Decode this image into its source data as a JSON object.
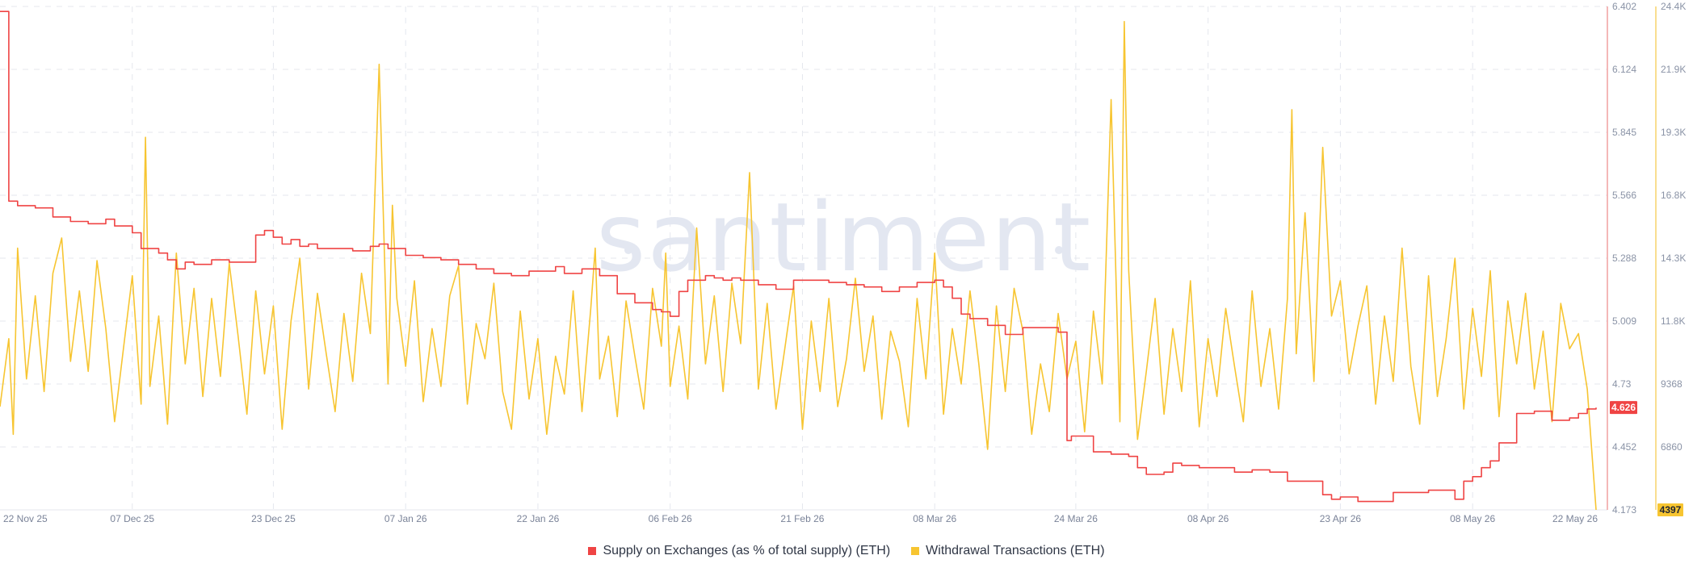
{
  "watermark": "santiment",
  "legend": [
    {
      "label": "Supply on Exchanges (as % of total supply) (ETH)",
      "color": "#ef4444"
    },
    {
      "label": "Withdrawal Transactions (ETH)",
      "color": "#f7c531"
    }
  ],
  "chart_data": {
    "type": "line",
    "x_range": [
      "2025-11-22",
      "2026-05-22"
    ],
    "x_tick_labels": [
      "22 Nov 25",
      "07 Dec 25",
      "23 Dec 25",
      "07 Jan 26",
      "22 Jan 26",
      "06 Feb 26",
      "21 Feb 26",
      "08 Mar 26",
      "24 Mar 26",
      "08 Apr 26",
      "23 Apr 26",
      "08 May 26",
      "22 May 26"
    ],
    "x_tick_positions": [
      0,
      15,
      31,
      46,
      61,
      76,
      91,
      106,
      122,
      137,
      152,
      167,
      181
    ],
    "grid": true,
    "legend_position": "bottom",
    "y_left": {
      "series": "Supply on Exchanges (as % of total supply) (ETH)",
      "range": [
        4.173,
        6.402
      ],
      "tick_labels": [
        "6.402",
        "6.124",
        "5.845",
        "5.566",
        "5.288",
        "5.009",
        "4.73",
        "4.452",
        "4.173"
      ],
      "last_value_badge": "4.626"
    },
    "y_right": {
      "series": "Withdrawal Transactions (ETH)",
      "range": [
        4397,
        24400
      ],
      "tick_labels": [
        "24.4K",
        "21.9K",
        "19.3K",
        "16.8K",
        "14.3K",
        "11.8K",
        "9368",
        "6860",
        "4397"
      ],
      "last_value_badge": "4397"
    },
    "series": [
      {
        "name": "Supply on Exchanges (as % of total supply) (ETH)",
        "axis": "left",
        "color": "#ef4444",
        "x": [
          0,
          1,
          2,
          4,
          6,
          8,
          10,
          12,
          13,
          15,
          16,
          18,
          19,
          20,
          21,
          22,
          24,
          26,
          28,
          29,
          30,
          31,
          32,
          33,
          34,
          35,
          36,
          38,
          40,
          42,
          43,
          44,
          46,
          48,
          50,
          52,
          54,
          56,
          58,
          60,
          62,
          63,
          64,
          66,
          68,
          70,
          72,
          74,
          75,
          76,
          77,
          78,
          80,
          81,
          82,
          83,
          84,
          86,
          88,
          90,
          92,
          94,
          96,
          98,
          100,
          102,
          104,
          106,
          107,
          108,
          109,
          110,
          111,
          112,
          114,
          116,
          118,
          119,
          120,
          121,
          121.5,
          122,
          124,
          126,
          128,
          129,
          130,
          132,
          133,
          134,
          136,
          138,
          140,
          142,
          144,
          146,
          148,
          150,
          151,
          152,
          154,
          156,
          158,
          160,
          162,
          164,
          165,
          166,
          167,
          168,
          169,
          170,
          172,
          174,
          176,
          178,
          179,
          180,
          181
        ],
        "values": [
          6.38,
          5.54,
          5.52,
          5.51,
          5.47,
          5.45,
          5.44,
          5.46,
          5.43,
          5.4,
          5.33,
          5.31,
          5.28,
          5.24,
          5.27,
          5.26,
          5.28,
          5.27,
          5.27,
          5.39,
          5.41,
          5.38,
          5.35,
          5.37,
          5.34,
          5.35,
          5.33,
          5.33,
          5.32,
          5.34,
          5.35,
          5.33,
          5.3,
          5.29,
          5.28,
          5.26,
          5.24,
          5.22,
          5.21,
          5.23,
          5.23,
          5.25,
          5.22,
          5.24,
          5.21,
          5.13,
          5.09,
          5.06,
          5.05,
          5.03,
          5.14,
          5.19,
          5.21,
          5.2,
          5.19,
          5.2,
          5.19,
          5.17,
          5.15,
          5.19,
          5.19,
          5.18,
          5.17,
          5.16,
          5.14,
          5.16,
          5.18,
          5.19,
          5.16,
          5.11,
          5.04,
          5.02,
          5.02,
          4.99,
          4.95,
          4.98,
          4.98,
          4.98,
          4.96,
          4.48,
          4.5,
          4.5,
          4.43,
          4.42,
          4.41,
          4.36,
          4.33,
          4.34,
          4.38,
          4.37,
          4.36,
          4.36,
          4.34,
          4.35,
          4.34,
          4.3,
          4.3,
          4.24,
          4.22,
          4.23,
          4.21,
          4.21,
          4.25,
          4.25,
          4.26,
          4.26,
          4.22,
          4.3,
          4.32,
          4.36,
          4.39,
          4.47,
          4.6,
          4.61,
          4.57,
          4.58,
          4.6,
          4.62,
          4.626
        ]
      },
      {
        "name": "Withdrawal Transactions (ETH)",
        "axis": "right",
        "color": "#f7c531",
        "x": [
          0,
          1,
          1.5,
          2,
          3,
          4,
          5,
          6,
          7,
          8,
          9,
          10,
          11,
          12,
          13,
          14,
          15,
          16,
          16.5,
          17,
          18,
          19,
          20,
          21,
          22,
          23,
          24,
          25,
          26,
          27,
          28,
          29,
          30,
          31,
          32,
          33,
          34,
          35,
          36,
          37,
          38,
          39,
          40,
          41,
          42,
          43,
          44,
          44.5,
          45,
          46,
          47,
          48,
          49,
          50,
          51,
          52,
          53,
          54,
          55,
          56,
          57,
          58,
          59,
          60,
          61,
          62,
          63,
          64,
          65,
          66,
          67,
          67.5,
          68,
          69,
          70,
          71,
          72,
          73,
          74,
          75,
          75.5,
          76,
          77,
          78,
          79,
          80,
          81,
          82,
          83,
          84,
          85,
          86,
          87,
          88,
          89,
          90,
          91,
          92,
          93,
          94,
          95,
          96,
          97,
          98,
          99,
          100,
          101,
          102,
          103,
          104,
          105,
          106,
          107,
          108,
          109,
          110,
          111,
          112,
          113,
          114,
          115,
          116,
          117,
          118,
          119,
          120,
          121,
          122,
          123,
          124,
          125,
          126,
          127,
          127.5,
          128,
          129,
          130,
          131,
          132,
          133,
          134,
          135,
          136,
          137,
          138,
          139,
          140,
          141,
          142,
          143,
          144,
          145,
          146,
          146.5,
          147,
          148,
          149,
          150,
          151,
          152,
          153,
          154,
          155,
          156,
          157,
          158,
          159,
          160,
          161,
          162,
          163,
          164,
          165,
          166,
          167,
          168,
          169,
          170,
          171,
          172,
          173,
          174,
          175,
          176,
          177,
          178,
          179,
          180,
          181
        ],
        "values": [
          8500,
          11200,
          7400,
          14800,
          9600,
          12900,
          9100,
          13800,
          15200,
          10300,
          13100,
          9900,
          14300,
          11600,
          7900,
          10800,
          13700,
          8600,
          19200,
          9300,
          12100,
          7800,
          14600,
          10200,
          13200,
          8900,
          12800,
          9700,
          14200,
          11300,
          8200,
          13100,
          9800,
          12500,
          7600,
          11900,
          14400,
          9200,
          13000,
          10600,
          8300,
          12200,
          9500,
          13800,
          11400,
          22100,
          9400,
          16500,
          12800,
          10100,
          13500,
          8700,
          11600,
          9300,
          12900,
          14100,
          8600,
          11800,
          10400,
          13400,
          9100,
          7600,
          12300,
          8800,
          11200,
          7400,
          10500,
          9000,
          13100,
          8300,
          12400,
          14800,
          9600,
          11300,
          8100,
          12700,
          10500,
          8400,
          13200,
          10900,
          14600,
          9300,
          11700,
          8800,
          15600,
          10200,
          12900,
          9100,
          13400,
          11000,
          17800,
          9200,
          12600,
          8400,
          10800,
          13300,
          7600,
          11900,
          9100,
          12800,
          8500,
          10400,
          13600,
          9900,
          12100,
          8000,
          11500,
          10300,
          7700,
          12800,
          9600,
          14600,
          8200,
          11600,
          9400,
          13100,
          10200,
          6800,
          12500,
          9100,
          13200,
          11500,
          7400,
          10200,
          8300,
          12200,
          9600,
          11100,
          7500,
          12300,
          9400,
          20700,
          7900,
          23800,
          13900,
          7200,
          9900,
          12800,
          8200,
          11600,
          9100,
          13500,
          7700,
          11200,
          8900,
          12400,
          10100,
          7900,
          13100,
          9300,
          11600,
          8400,
          12800,
          20300,
          10600,
          16200,
          9500,
          18800,
          12100,
          13500,
          9800,
          11700,
          13300,
          8600,
          12100,
          9500,
          14800,
          10100,
          7800,
          13700,
          8900,
          11200,
          14400,
          8400,
          12400,
          9700,
          13900,
          8100,
          12700,
          10200,
          13000,
          9200,
          11500,
          7900,
          12600,
          10800,
          11400,
          9200,
          4397
        ]
      }
    ]
  }
}
